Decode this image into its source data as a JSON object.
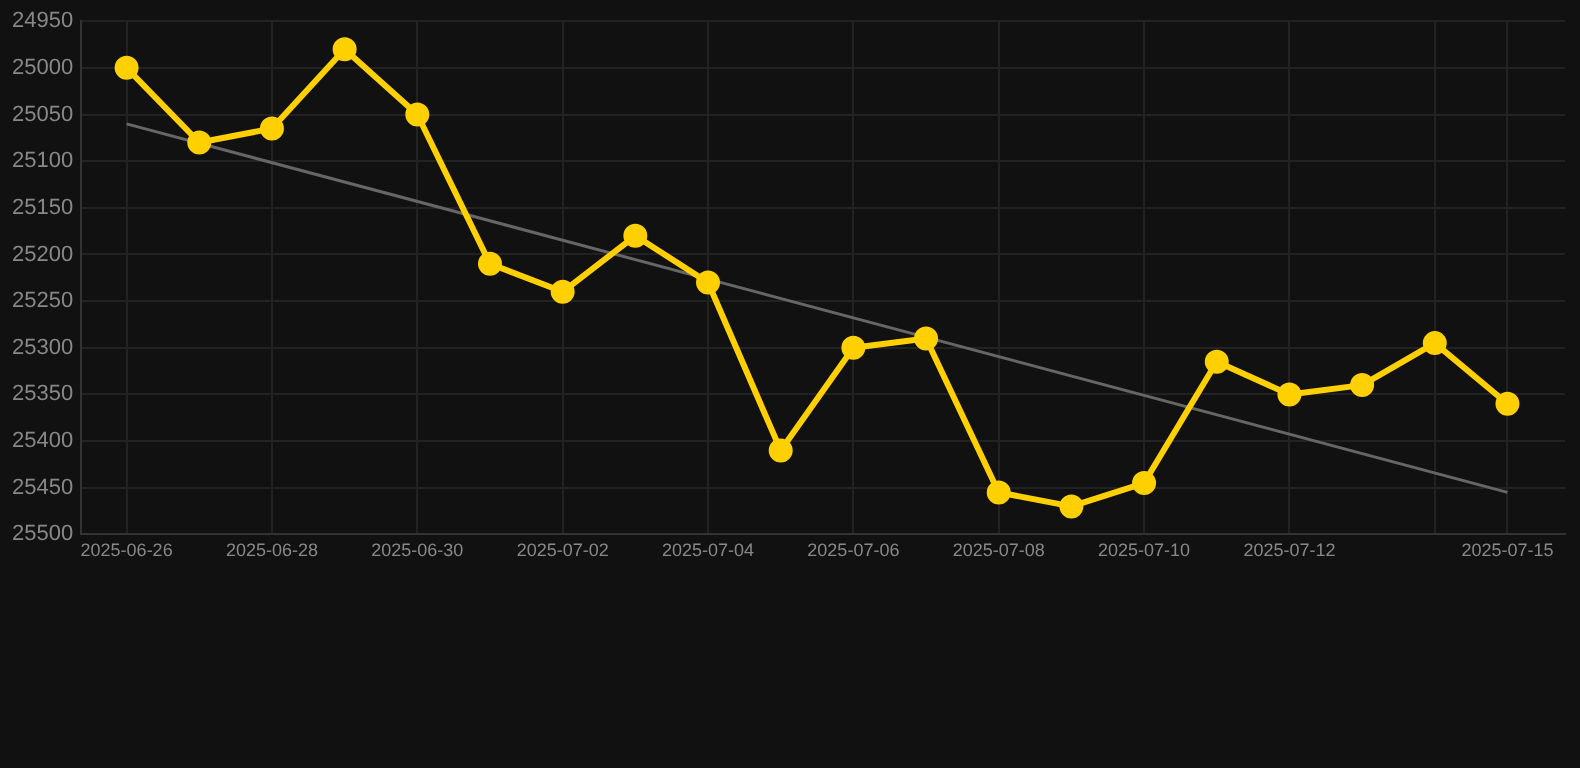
{
  "chart_data": {
    "type": "line",
    "x": [
      "2025-06-26",
      "2025-06-27",
      "2025-06-28",
      "2025-06-29",
      "2025-06-30",
      "2025-07-01",
      "2025-07-02",
      "2025-07-03",
      "2025-07-04",
      "2025-07-05",
      "2025-07-06",
      "2025-07-07",
      "2025-07-08",
      "2025-07-09",
      "2025-07-10",
      "2025-07-11",
      "2025-07-12",
      "2025-07-13",
      "2025-07-14",
      "2025-07-15"
    ],
    "series": [
      {
        "color": "#ffd000",
        "marker": "circle",
        "values": [
          25000,
          25080,
          25065,
          24980,
          25050,
          25210,
          25240,
          25180,
          25230,
          25410,
          25300,
          25290,
          25455,
          25470,
          25445,
          25315,
          25350,
          25340,
          25295,
          25360
        ]
      },
      {
        "type": "line",
        "color": "#666666",
        "marker": "none",
        "x": [
          "2025-06-26",
          "2025-07-15"
        ],
        "values": [
          25060,
          25455
        ]
      }
    ],
    "ylim": [
      25500,
      24950
    ],
    "yticks": [
      24950,
      25000,
      25050,
      25100,
      25150,
      25200,
      25250,
      25300,
      25350,
      25400,
      25450,
      25500
    ],
    "xlim": [
      "2025-06-25T09:00",
      "2025-07-15T19:00"
    ],
    "xticks": [
      "2025-06-26",
      "2025-06-28",
      "2025-06-30",
      "2025-07-02",
      "2025-07-04",
      "2025-07-06",
      "2025-07-08",
      "2025-07-10",
      "2025-07-12",
      {
        "value": "2025-07-14",
        "label": null
      },
      "2025-07-15"
    ],
    "grid": true
  }
}
